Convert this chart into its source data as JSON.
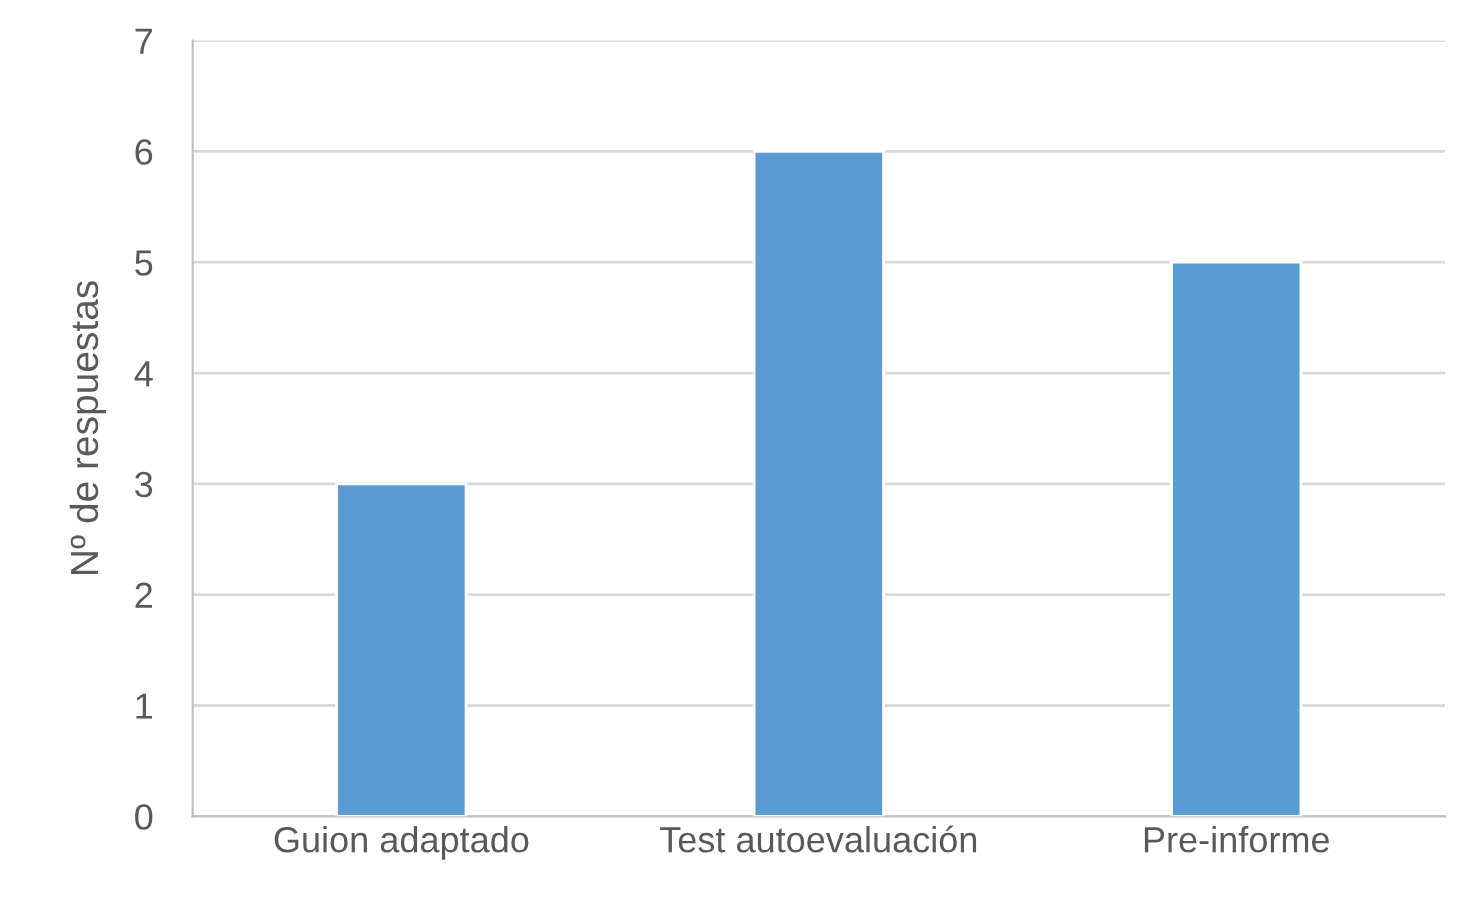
{
  "chart_data": {
    "type": "bar",
    "ylabel": "Nº de respuestas",
    "categories": [
      "Guion adaptado",
      "Test autoevaluación",
      "Pre-informe"
    ],
    "values": [
      3,
      6,
      5
    ],
    "color": "#5b9bd5",
    "ylim": [
      0,
      7
    ],
    "yticks": [
      0,
      1,
      2,
      3,
      4,
      5,
      6,
      7
    ],
    "grid": "y",
    "legend": false
  }
}
